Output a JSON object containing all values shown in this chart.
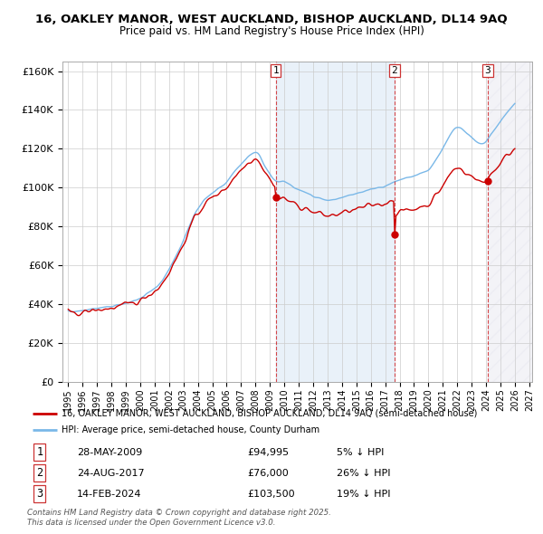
{
  "title1": "16, OAKLEY MANOR, WEST AUCKLAND, BISHOP AUCKLAND, DL14 9AQ",
  "title2": "Price paid vs. HM Land Registry's House Price Index (HPI)",
  "ylim": [
    0,
    165000
  ],
  "yticks": [
    0,
    20000,
    40000,
    60000,
    80000,
    100000,
    120000,
    140000,
    160000
  ],
  "ytick_labels": [
    "£0",
    "£20K",
    "£40K",
    "£60K",
    "£80K",
    "£100K",
    "£120K",
    "£140K",
    "£160K"
  ],
  "hpi_color": "#7ab8e8",
  "price_color": "#cc0000",
  "vline_color": "#cc0000",
  "shade_color": "#ddeeff",
  "sale1_year": 2009.4,
  "sale1_price": 94995,
  "sale2_year": 2017.65,
  "sale2_price": 76000,
  "sale3_year": 2024.12,
  "sale3_price": 103500,
  "legend_line1": "16, OAKLEY MANOR, WEST AUCKLAND, BISHOP AUCKLAND, DL14 9AQ (semi-detached house)",
  "legend_line2": "HPI: Average price, semi-detached house, County Durham",
  "table_data": [
    [
      "1",
      "28-MAY-2009",
      "£94,995",
      "5% ↓ HPI"
    ],
    [
      "2",
      "24-AUG-2017",
      "£76,000",
      "26% ↓ HPI"
    ],
    [
      "3",
      "14-FEB-2024",
      "£103,500",
      "19% ↓ HPI"
    ]
  ],
  "footer": "Contains HM Land Registry data © Crown copyright and database right 2025.\nThis data is licensed under the Open Government Licence v3.0.",
  "background_color": "#ffffff"
}
